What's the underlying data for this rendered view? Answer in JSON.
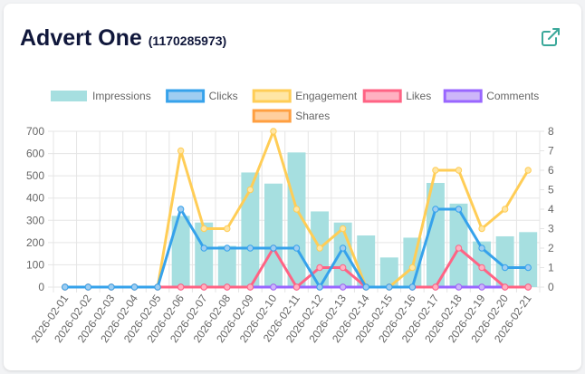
{
  "card": {
    "title": "Advert One",
    "ad_id": "(1170285973)"
  },
  "icons": {
    "external_link": "external-link-icon"
  },
  "colors": {
    "Impressions": {
      "fill": "#a6dfe0",
      "stroke": "#a6dfe0"
    },
    "Clicks": {
      "fill": "#9fcdf1",
      "stroke": "#36a2eb"
    },
    "Engagement": {
      "fill": "#ffe6a5",
      "stroke": "#ffcd56"
    },
    "Likes": {
      "fill": "#ffb1c1",
      "stroke": "#ff6384"
    },
    "Comments": {
      "fill": "#cdb6f9",
      "stroke": "#9966ff"
    },
    "Shares": {
      "fill": "#ffcf9f",
      "stroke": "#ff9f40"
    }
  },
  "chart_data": {
    "type": "bar",
    "categories": [
      "2026-02-01",
      "2026-02-02",
      "2026-02-03",
      "2026-02-04",
      "2026-02-05",
      "2026-02-06",
      "2026-02-07",
      "2026-02-08",
      "2026-02-09",
      "2026-02-10",
      "2026-02-11",
      "2026-02-12",
      "2026-02-13",
      "2026-02-14",
      "2026-02-15",
      "2026-02-16",
      "2026-02-17",
      "2026-02-18",
      "2026-02-19",
      "2026-02-20",
      "2026-02-21"
    ],
    "left_axis": {
      "min": 0,
      "max": 700,
      "ticks": [
        0,
        100,
        200,
        300,
        400,
        500,
        600,
        700
      ]
    },
    "right_axis": {
      "min": 0,
      "max": 8,
      "ticks": [
        0,
        1,
        2,
        3,
        4,
        5,
        6,
        7,
        8
      ]
    },
    "grid": true,
    "legend_position": "top",
    "series": [
      {
        "name": "Impressions",
        "type": "bar",
        "axis": "left",
        "values": [
          0,
          0,
          0,
          0,
          0,
          320,
          290,
          185,
          515,
          465,
          605,
          340,
          290,
          232,
          133,
          222,
          468,
          375,
          205,
          228,
          247
        ]
      },
      {
        "name": "Clicks",
        "type": "line",
        "axis": "right",
        "values": [
          0,
          0,
          0,
          0,
          0,
          4,
          2,
          2,
          2,
          2,
          2,
          0,
          2,
          0,
          0,
          0,
          4,
          4,
          2,
          1,
          1
        ]
      },
      {
        "name": "Engagement",
        "type": "line",
        "axis": "right",
        "values": [
          0,
          0,
          0,
          0,
          0,
          7,
          3,
          3,
          5,
          8,
          4,
          2,
          3,
          0,
          0,
          1,
          6,
          6,
          3,
          4,
          6
        ]
      },
      {
        "name": "Likes",
        "type": "line",
        "axis": "right",
        "values": [
          0,
          0,
          0,
          0,
          0,
          0,
          0,
          0,
          0,
          2,
          0,
          1,
          1,
          0,
          0,
          0,
          0,
          2,
          1,
          0,
          0
        ]
      },
      {
        "name": "Comments",
        "type": "line",
        "axis": "right",
        "values": [
          0,
          0,
          0,
          0,
          0,
          0,
          0,
          0,
          0,
          0,
          0,
          0,
          0,
          0,
          0,
          0,
          0,
          0,
          0,
          0,
          0
        ]
      },
      {
        "name": "Shares",
        "type": "line",
        "axis": "right",
        "values": [
          0,
          0,
          0,
          0,
          0,
          0,
          0,
          0,
          0,
          0,
          0,
          0,
          0,
          0,
          0,
          0,
          0,
          0,
          0,
          0,
          0
        ]
      }
    ]
  }
}
